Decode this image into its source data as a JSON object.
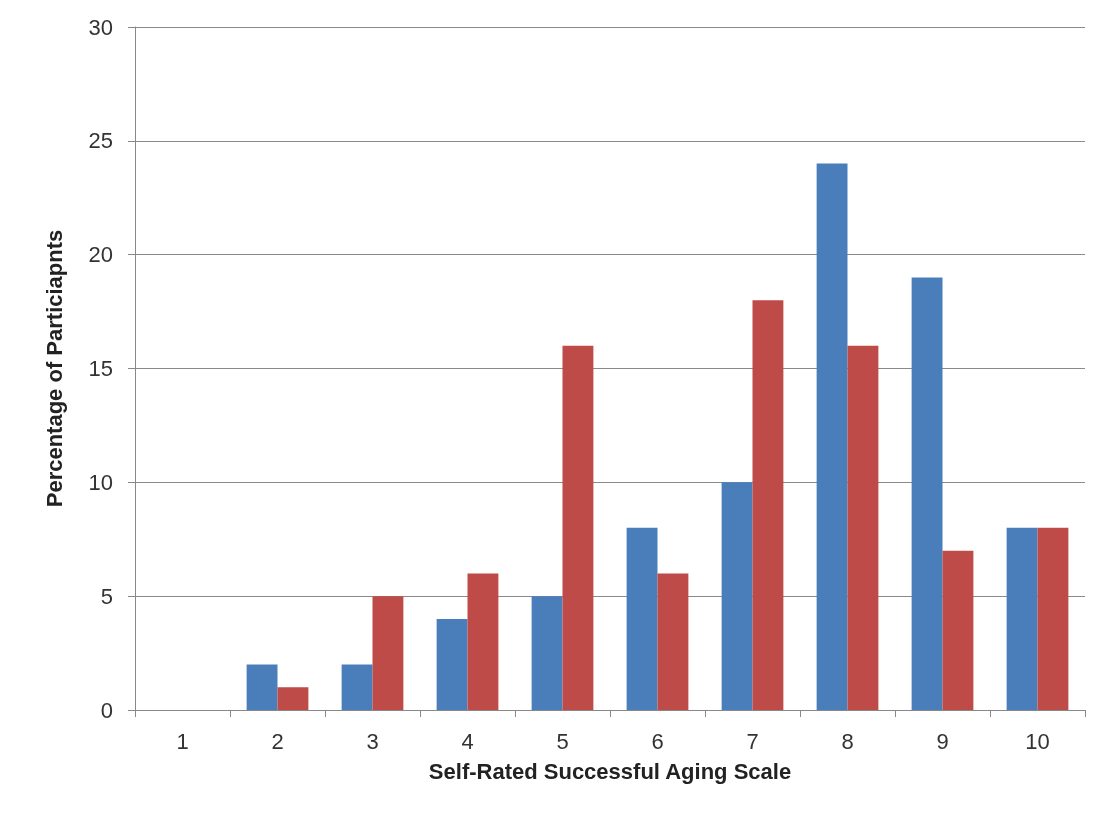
{
  "chart_data": {
    "type": "bar",
    "xlabel": "Self-Rated Successful Aging Scale",
    "ylabel": "Percentage of Particiapnts",
    "categories": [
      "1",
      "2",
      "3",
      "4",
      "5",
      "6",
      "7",
      "8",
      "9",
      "10"
    ],
    "series": [
      {
        "color": "#4a7ebb",
        "values": [
          0,
          2,
          2,
          4,
          5,
          8,
          10,
          24,
          19,
          8
        ]
      },
      {
        "color": "#be4b48",
        "values": [
          0,
          1,
          5,
          6,
          16,
          6,
          18,
          16,
          7,
          8
        ]
      }
    ],
    "ylim": [
      0,
      30
    ],
    "yticks": [
      0,
      5,
      10,
      15,
      20,
      25,
      30
    ],
    "grid": "y"
  }
}
